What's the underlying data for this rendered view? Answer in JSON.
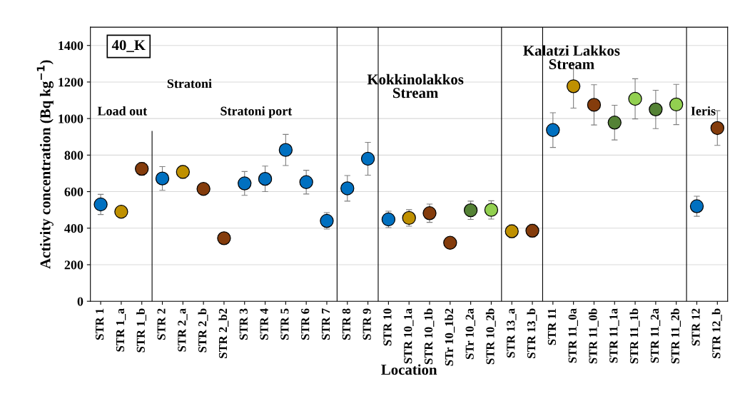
{
  "chart_data": {
    "type": "scatter",
    "xlabel": "Location",
    "ylabel": "Activity concentration (Bq kg$^{−1}$)",
    "categories": [
      "STR 1",
      "STR 1_a",
      "STR 1_b",
      "STR 2",
      "STR 2_a",
      "STR 2_b",
      "STR 2_b2",
      "STR 3",
      "STR 4",
      "STR 5",
      "STR 6",
      "STR 7",
      "STR 8",
      "STR 9",
      "STR 10",
      "STR 10_1a",
      "STR 10_1b",
      "STr 10_1b2",
      "STr 10_2a",
      "STR 10_2b",
      "STR 13_a",
      "STR 13_b",
      "STR 11",
      "STR 11_0a",
      "STR 11_0b",
      "STR 11_1a",
      "STR 11_1b",
      "STR 11_2a",
      "STR 11_2b",
      "STR 12",
      "STR 12_b"
    ],
    "values": [
      530,
      490,
      725,
      672,
      708,
      615,
      345,
      645,
      670,
      828,
      652,
      440,
      618,
      780,
      448,
      456,
      482,
      320,
      498,
      500,
      383,
      386,
      937,
      1177,
      1075,
      978,
      1108,
      1050,
      1077,
      520,
      948
    ],
    "errors": [
      55,
      null,
      35,
      65,
      35,
      25,
      null,
      65,
      70,
      85,
      65,
      45,
      70,
      90,
      45,
      45,
      50,
      30,
      50,
      50,
      35,
      35,
      95,
      120,
      110,
      95,
      110,
      105,
      110,
      55,
      95
    ],
    "colors": [
      "#0070c0",
      "#bf9000",
      "#843c0c",
      "#0070c0",
      "#bf9000",
      "#843c0c",
      "#843c0c",
      "#0070c0",
      "#0070c0",
      "#0070c0",
      "#0070c0",
      "#0070c0",
      "#0070c0",
      "#0070c0",
      "#0070c0",
      "#bf9000",
      "#843c0c",
      "#843c0c",
      "#548235",
      "#92d050",
      "#bf9000",
      "#843c0c",
      "#0070c0",
      "#bf9000",
      "#843c0c",
      "#548235",
      "#92d050",
      "#548235",
      "#92d050",
      "#0070c0",
      "#843c0c"
    ],
    "ylim": [
      0,
      1500
    ],
    "yticks": [
      0,
      200,
      400,
      600,
      800,
      1000,
      1200,
      1400
    ],
    "grid": "y",
    "marker": "circle",
    "legend": false,
    "annotations": [
      "40_K",
      "Load out",
      "Stratoni",
      "Stratoni port",
      "Kokkinolakkos\nStream",
      "Kalatzi Lakkos\nStream",
      "Ieris"
    ]
  }
}
